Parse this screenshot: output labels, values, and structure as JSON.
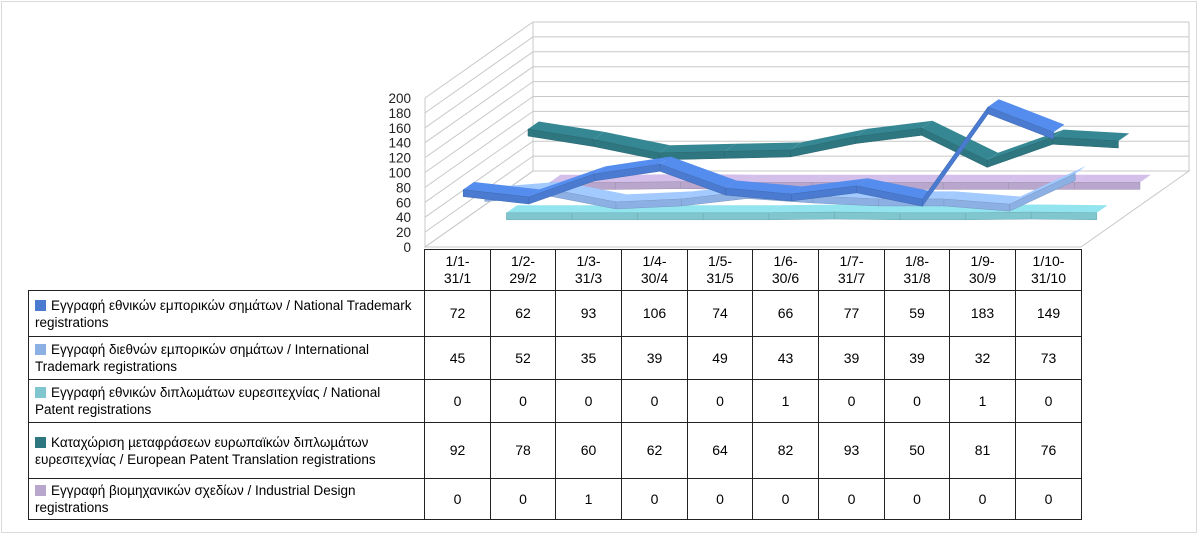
{
  "chart_data": {
    "type": "line",
    "categories": [
      "1/1-\n31/1",
      "1/2-\n29/2",
      "1/3-\n31/3",
      "1/4-\n30/4",
      "1/5-\n31/5",
      "1/6-\n30/6",
      "1/7-\n31/7",
      "1/8-\n31/8",
      "1/9-\n30/9",
      "1/10-\n31/10"
    ],
    "y_ticks": [
      "200",
      "180",
      "160",
      "140",
      "120",
      "100",
      "80",
      "60",
      "40",
      "20",
      "0"
    ],
    "ylim": [
      0,
      200
    ],
    "grid": true,
    "three_d": true,
    "legend": "data-table",
    "series": [
      {
        "name": "Εγγραφή εθνικών εμπορικών σηµάτων / National Trademark registrations",
        "color": "#4a7bd0",
        "values": [
          72,
          62,
          93,
          106,
          74,
          66,
          77,
          59,
          183,
          149
        ]
      },
      {
        "name": "Εγγραφή διεθνών εµπορικών σηµάτων / International Trademark registrations",
        "color": "#8db0e4",
        "values": [
          45,
          52,
          35,
          39,
          49,
          43,
          39,
          39,
          32,
          73
        ]
      },
      {
        "name": "Εγγραφή εθνικών διπλωµάτων ευρεσιτεχνίας / National Patent registrations",
        "color": "#7fc6cf",
        "values": [
          0,
          0,
          0,
          0,
          0,
          1,
          0,
          0,
          1,
          0
        ]
      },
      {
        "name": "Καταχώριση µεταφράσεων ευρωπαϊκών διπλωµάτων ευρεσιτεχνίας / European Patent Translation registrations",
        "color": "#2e7680",
        "values": [
          92,
          78,
          60,
          62,
          64,
          82,
          93,
          50,
          81,
          76
        ]
      },
      {
        "name": "Εγγραφή βιοµηχανικών σχεδίων / Industrial Design registrations",
        "color": "#b8a6cc",
        "values": [
          0,
          0,
          1,
          0,
          0,
          0,
          0,
          0,
          0,
          0
        ]
      }
    ]
  }
}
